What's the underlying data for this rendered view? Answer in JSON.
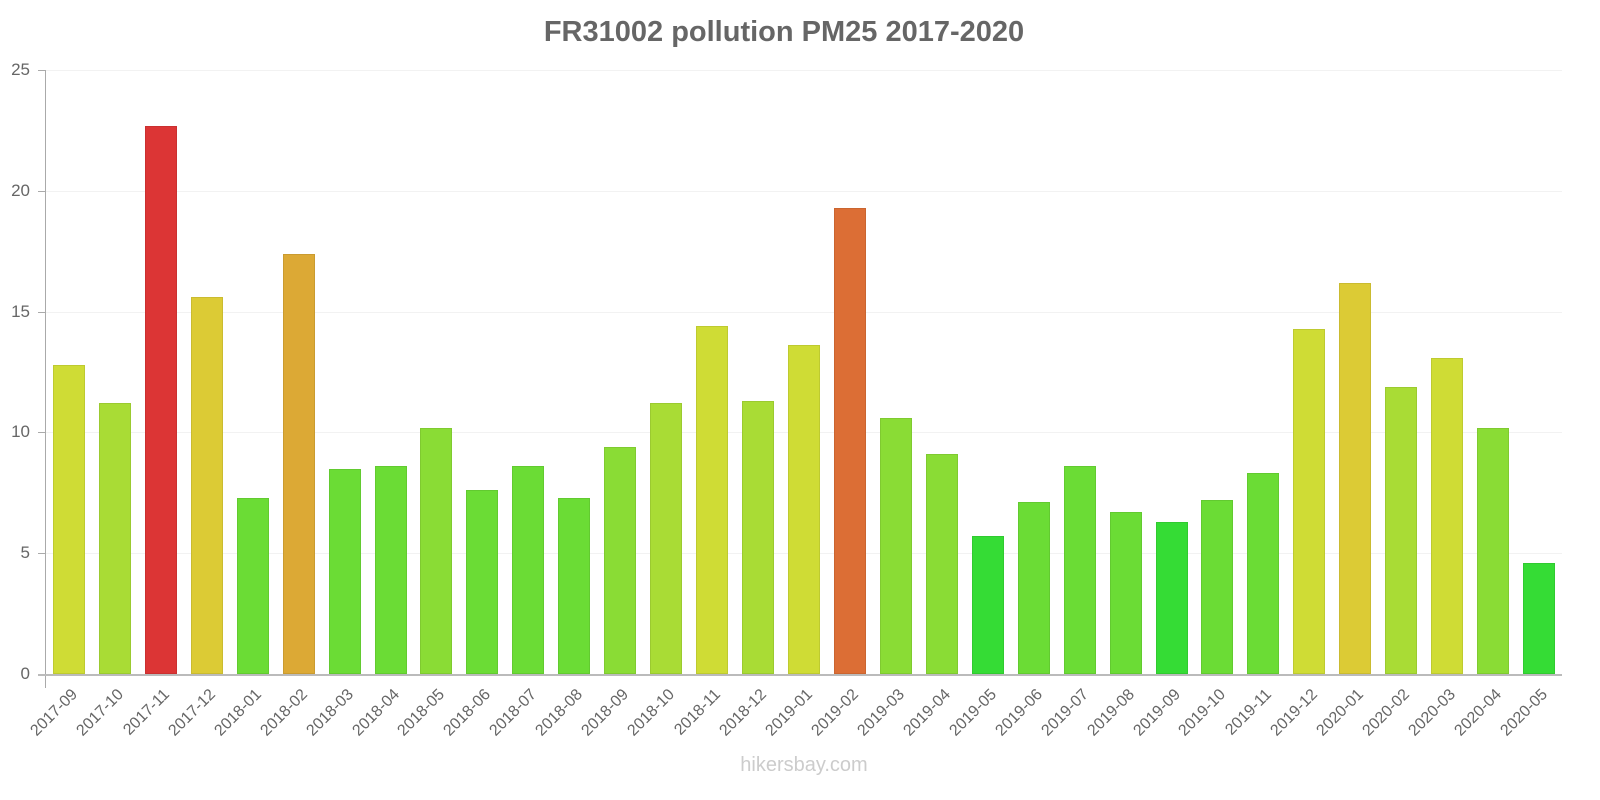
{
  "chart_data": {
    "type": "bar",
    "title": "FR31002 pollution PM25 2017-2020",
    "xlabel": "",
    "ylabel": "",
    "ylim": [
      0,
      25
    ],
    "yticks": [
      0,
      5,
      10,
      15,
      20,
      25
    ],
    "grid": true,
    "legend": null,
    "categories": [
      "2017-09",
      "2017-10",
      "2017-11",
      "2017-12",
      "2018-01",
      "2018-02",
      "2018-03",
      "2018-04",
      "2018-05",
      "2018-06",
      "2018-07",
      "2018-08",
      "2018-09",
      "2018-10",
      "2018-11",
      "2018-12",
      "2019-01",
      "2019-02",
      "2019-03",
      "2019-04",
      "2019-05",
      "2019-06",
      "2019-07",
      "2019-08",
      "2019-09",
      "2019-10",
      "2019-11",
      "2019-12",
      "2020-01",
      "2020-02",
      "2020-03",
      "2020-04",
      "2020-05"
    ],
    "values": [
      12.8,
      11.2,
      22.7,
      15.6,
      7.3,
      17.4,
      8.5,
      8.6,
      10.2,
      7.6,
      8.6,
      7.3,
      9.4,
      11.2,
      14.4,
      11.3,
      13.6,
      19.3,
      10.6,
      9.1,
      5.7,
      7.1,
      8.6,
      6.7,
      6.3,
      7.2,
      8.3,
      14.3,
      16.2,
      11.9,
      13.1,
      10.2,
      4.6
    ],
    "colors": [
      "#cfdc35",
      "#a9dc35",
      "#dc3535",
      "#dccb35",
      "#6bdc35",
      "#dca935",
      "#6bdc35",
      "#6bdc35",
      "#8adc35",
      "#6bdc35",
      "#6bdc35",
      "#6bdc35",
      "#8adc35",
      "#a9dc35",
      "#cfdc35",
      "#a9dc35",
      "#cfdc35",
      "#dc6e35",
      "#8adc35",
      "#8adc35",
      "#35dc35",
      "#6bdc35",
      "#6bdc35",
      "#6bdc35",
      "#35dc35",
      "#6bdc35",
      "#6bdc35",
      "#cfdc35",
      "#dccb35",
      "#a9dc35",
      "#cfdc35",
      "#8adc35",
      "#35dc35"
    ]
  },
  "watermark": "hikersbay.com"
}
